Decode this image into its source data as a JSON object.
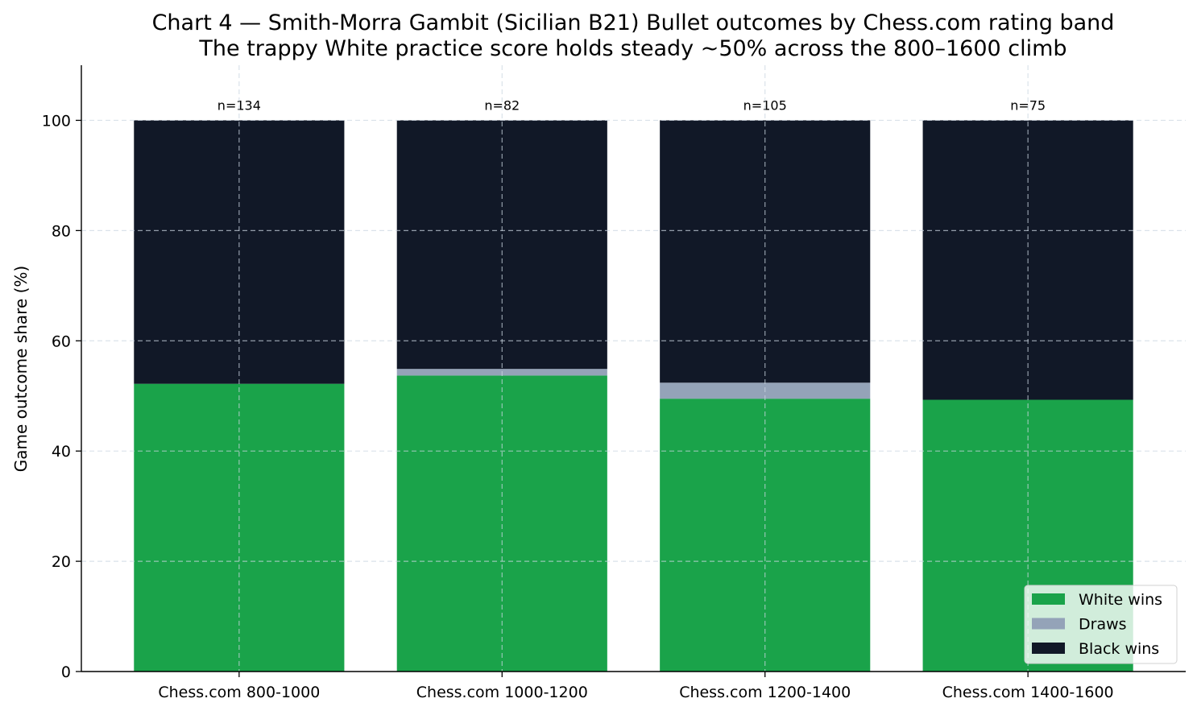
{
  "chart_data": {
    "type": "bar",
    "stacked": true,
    "title": "Chart 4 — Smith-Morra Gambit (Sicilian B21) Bullet outcomes by Chess.com rating band",
    "subtitle": "The trappy White practice score holds steady ~50% across the 800–1600 climb",
    "xlabel": "",
    "ylabel": "Game outcome share (%)",
    "ylim": [
      0,
      110
    ],
    "yticks": [
      0,
      20,
      40,
      60,
      80,
      100
    ],
    "grid": true,
    "legend_position": "lower-right",
    "categories": [
      "Chess.com 800-1000",
      "Chess.com 1000-1200",
      "Chess.com 1200-1400",
      "Chess.com 1400-1600"
    ],
    "sample_sizes": [
      "n=134",
      "n=82",
      "n=105",
      "n=75"
    ],
    "series": [
      {
        "name": "White wins",
        "color": "#1aa34a",
        "values": [
          52.2,
          53.7,
          49.5,
          49.3
        ]
      },
      {
        "name": "Draws",
        "color": "#94a3b8",
        "values": [
          0.0,
          1.2,
          2.9,
          0.0
        ]
      },
      {
        "name": "Black wins",
        "color": "#111827",
        "values": [
          47.8,
          45.1,
          47.6,
          50.7
        ]
      }
    ]
  }
}
